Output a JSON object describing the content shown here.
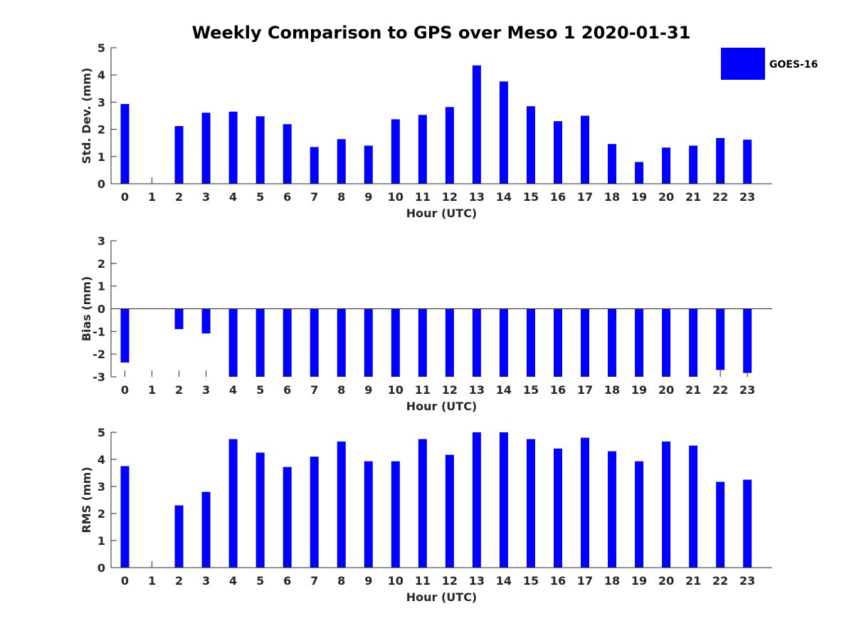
{
  "chart_data": {
    "title": "Weekly Comparison to GPS over Meso 1 2020-01-31",
    "legend": {
      "label": "GOES-16",
      "placement": "top-right",
      "color": "#0000ff"
    },
    "bar_color": "#0000ff",
    "panels": [
      {
        "type": "bar",
        "xlabel": "Hour (UTC)",
        "ylabel": "Std. Dev. (mm)",
        "ylim": [
          0,
          5
        ],
        "yticks": [
          0,
          1,
          2,
          3,
          4,
          5
        ],
        "categories": [
          "0",
          "1",
          "2",
          "3",
          "4",
          "5",
          "6",
          "7",
          "8",
          "9",
          "10",
          "11",
          "12",
          "13",
          "14",
          "15",
          "16",
          "17",
          "18",
          "19",
          "20",
          "21",
          "22",
          "23"
        ],
        "values": [
          2.93,
          null,
          2.12,
          2.61,
          2.65,
          2.48,
          2.19,
          1.35,
          1.64,
          1.4,
          2.37,
          2.53,
          2.82,
          4.35,
          3.76,
          2.85,
          2.3,
          2.5,
          1.46,
          0.8,
          1.33,
          1.4,
          1.68,
          1.62
        ]
      },
      {
        "type": "bar",
        "xlabel": "Hour (UTC)",
        "ylabel": "Bias (mm)",
        "ylim": [
          -3,
          3
        ],
        "yticks": [
          -3,
          -2,
          -1,
          0,
          1,
          2,
          3
        ],
        "categories": [
          "0",
          "1",
          "2",
          "3",
          "4",
          "5",
          "6",
          "7",
          "8",
          "9",
          "10",
          "11",
          "12",
          "13",
          "14",
          "15",
          "16",
          "17",
          "18",
          "19",
          "20",
          "21",
          "22",
          "23"
        ],
        "values": [
          -2.37,
          null,
          -0.9,
          -1.09,
          -3.0,
          -3.0,
          -3.0,
          -3.0,
          -3.0,
          -3.0,
          -3.0,
          -3.0,
          -3.0,
          -3.0,
          -3.0,
          -3.0,
          -3.0,
          -3.0,
          -3.0,
          -3.0,
          -3.0,
          -3.0,
          -2.7,
          -2.83
        ]
      },
      {
        "type": "bar",
        "xlabel": "Hour (UTC)",
        "ylabel": "RMS (mm)",
        "ylim": [
          0,
          5
        ],
        "yticks": [
          0,
          1,
          2,
          3,
          4,
          5
        ],
        "categories": [
          "0",
          "1",
          "2",
          "3",
          "4",
          "5",
          "6",
          "7",
          "8",
          "9",
          "10",
          "11",
          "12",
          "13",
          "14",
          "15",
          "16",
          "17",
          "18",
          "19",
          "20",
          "21",
          "22",
          "23"
        ],
        "values": [
          3.75,
          null,
          2.3,
          2.8,
          4.75,
          4.25,
          3.72,
          4.1,
          4.66,
          3.93,
          3.93,
          4.75,
          4.17,
          5.0,
          5.0,
          4.75,
          4.4,
          4.8,
          4.3,
          3.93,
          4.66,
          4.51,
          3.17,
          3.25
        ]
      }
    ]
  }
}
